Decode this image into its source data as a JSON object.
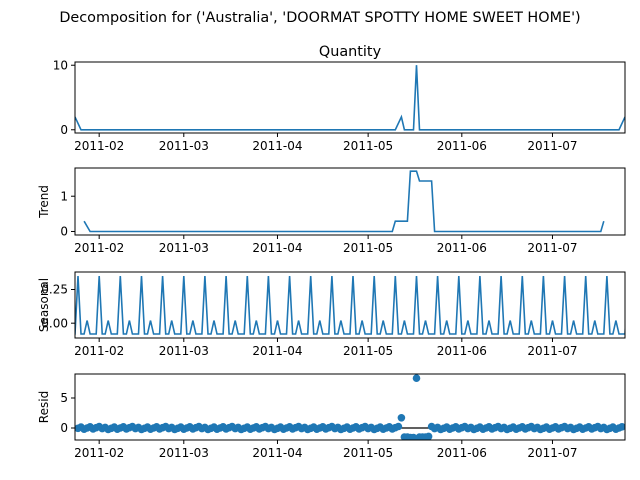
{
  "figure_title": "Decomposition for ('Australia', 'DOORMAT SPOTTY HOME SWEET HOME')",
  "line_color": "#1f77b4",
  "chart_data": [
    {
      "type": "line",
      "title": "Quantity",
      "ylabel": "",
      "x_range": [
        "2011-01-24",
        "2011-07-25"
      ],
      "ylim": [
        -0.5,
        10.5
      ],
      "yticks": [
        {
          "v": 0,
          "label": "0"
        },
        {
          "v": 10,
          "label": "10"
        }
      ],
      "xticks": [
        "2011-02",
        "2011-03",
        "2011-04",
        "2011-05",
        "2011-06",
        "2011-07"
      ],
      "points": [
        [
          "2011-01-24",
          2
        ],
        [
          "2011-01-26",
          0
        ],
        [
          "2011-05-10",
          0
        ],
        [
          "2011-05-12",
          2
        ],
        [
          "2011-05-13",
          0
        ],
        [
          "2011-05-16",
          0
        ],
        [
          "2011-05-17",
          10
        ],
        [
          "2011-05-18",
          0
        ],
        [
          "2011-07-23",
          0
        ],
        [
          "2011-07-25",
          2
        ]
      ]
    },
    {
      "type": "line",
      "title": "",
      "ylabel": "Trend",
      "x_range": [
        "2011-01-24",
        "2011-07-25"
      ],
      "ylim": [
        -0.1,
        1.8
      ],
      "yticks": [
        {
          "v": 0,
          "label": "0"
        },
        {
          "v": 1,
          "label": "1"
        }
      ],
      "xticks": [
        "2011-02",
        "2011-03",
        "2011-04",
        "2011-05",
        "2011-06",
        "2011-07"
      ],
      "points": [
        [
          "2011-01-27",
          0.29
        ],
        [
          "2011-01-29",
          0
        ],
        [
          "2011-05-09",
          0
        ],
        [
          "2011-05-10",
          0.29
        ],
        [
          "2011-05-14",
          0.29
        ],
        [
          "2011-05-15",
          1.71
        ],
        [
          "2011-05-17",
          1.71
        ],
        [
          "2011-05-18",
          1.43
        ],
        [
          "2011-05-22",
          1.43
        ],
        [
          "2011-05-23",
          0
        ],
        [
          "2011-07-17",
          0
        ],
        [
          "2011-07-18",
          0.29
        ]
      ]
    },
    {
      "type": "line",
      "title": "",
      "ylabel": "Seasonal",
      "x_range": [
        "2011-01-24",
        "2011-07-25"
      ],
      "ylim": [
        -0.11,
        0.38
      ],
      "yticks": [
        {
          "v": 0,
          "label": "0.00"
        },
        {
          "v": 0.25,
          "label": "0.25"
        }
      ],
      "xticks": [
        "2011-02",
        "2011-03",
        "2011-04",
        "2011-05",
        "2011-06",
        "2011-07"
      ],
      "period_days": 7,
      "first_peak": "2011-01-25",
      "pattern": [
        0.35,
        -0.08,
        -0.08,
        0.02,
        -0.08,
        -0.08,
        -0.08
      ]
    },
    {
      "type": "scatter",
      "title": "",
      "ylabel": "Resid",
      "x_range": [
        "2011-01-24",
        "2011-07-25"
      ],
      "ylim": [
        -2.0,
        9.0
      ],
      "yticks": [
        {
          "v": 0,
          "label": "0"
        },
        {
          "v": 5,
          "label": "5"
        }
      ],
      "xticks": [
        "2011-02",
        "2011-03",
        "2011-04",
        "2011-05",
        "2011-06",
        "2011-07"
      ],
      "baseline": 0,
      "outliers": [
        [
          "2011-05-12",
          1.7
        ],
        [
          "2011-05-13",
          -1.5
        ],
        [
          "2011-05-14",
          -1.5
        ],
        [
          "2011-05-15",
          -1.6
        ],
        [
          "2011-05-16",
          -1.6
        ],
        [
          "2011-05-17",
          8.3
        ],
        [
          "2011-05-18",
          -1.5
        ],
        [
          "2011-05-19",
          -1.5
        ],
        [
          "2011-05-20",
          -1.5
        ],
        [
          "2011-05-21",
          -1.4
        ]
      ]
    }
  ]
}
